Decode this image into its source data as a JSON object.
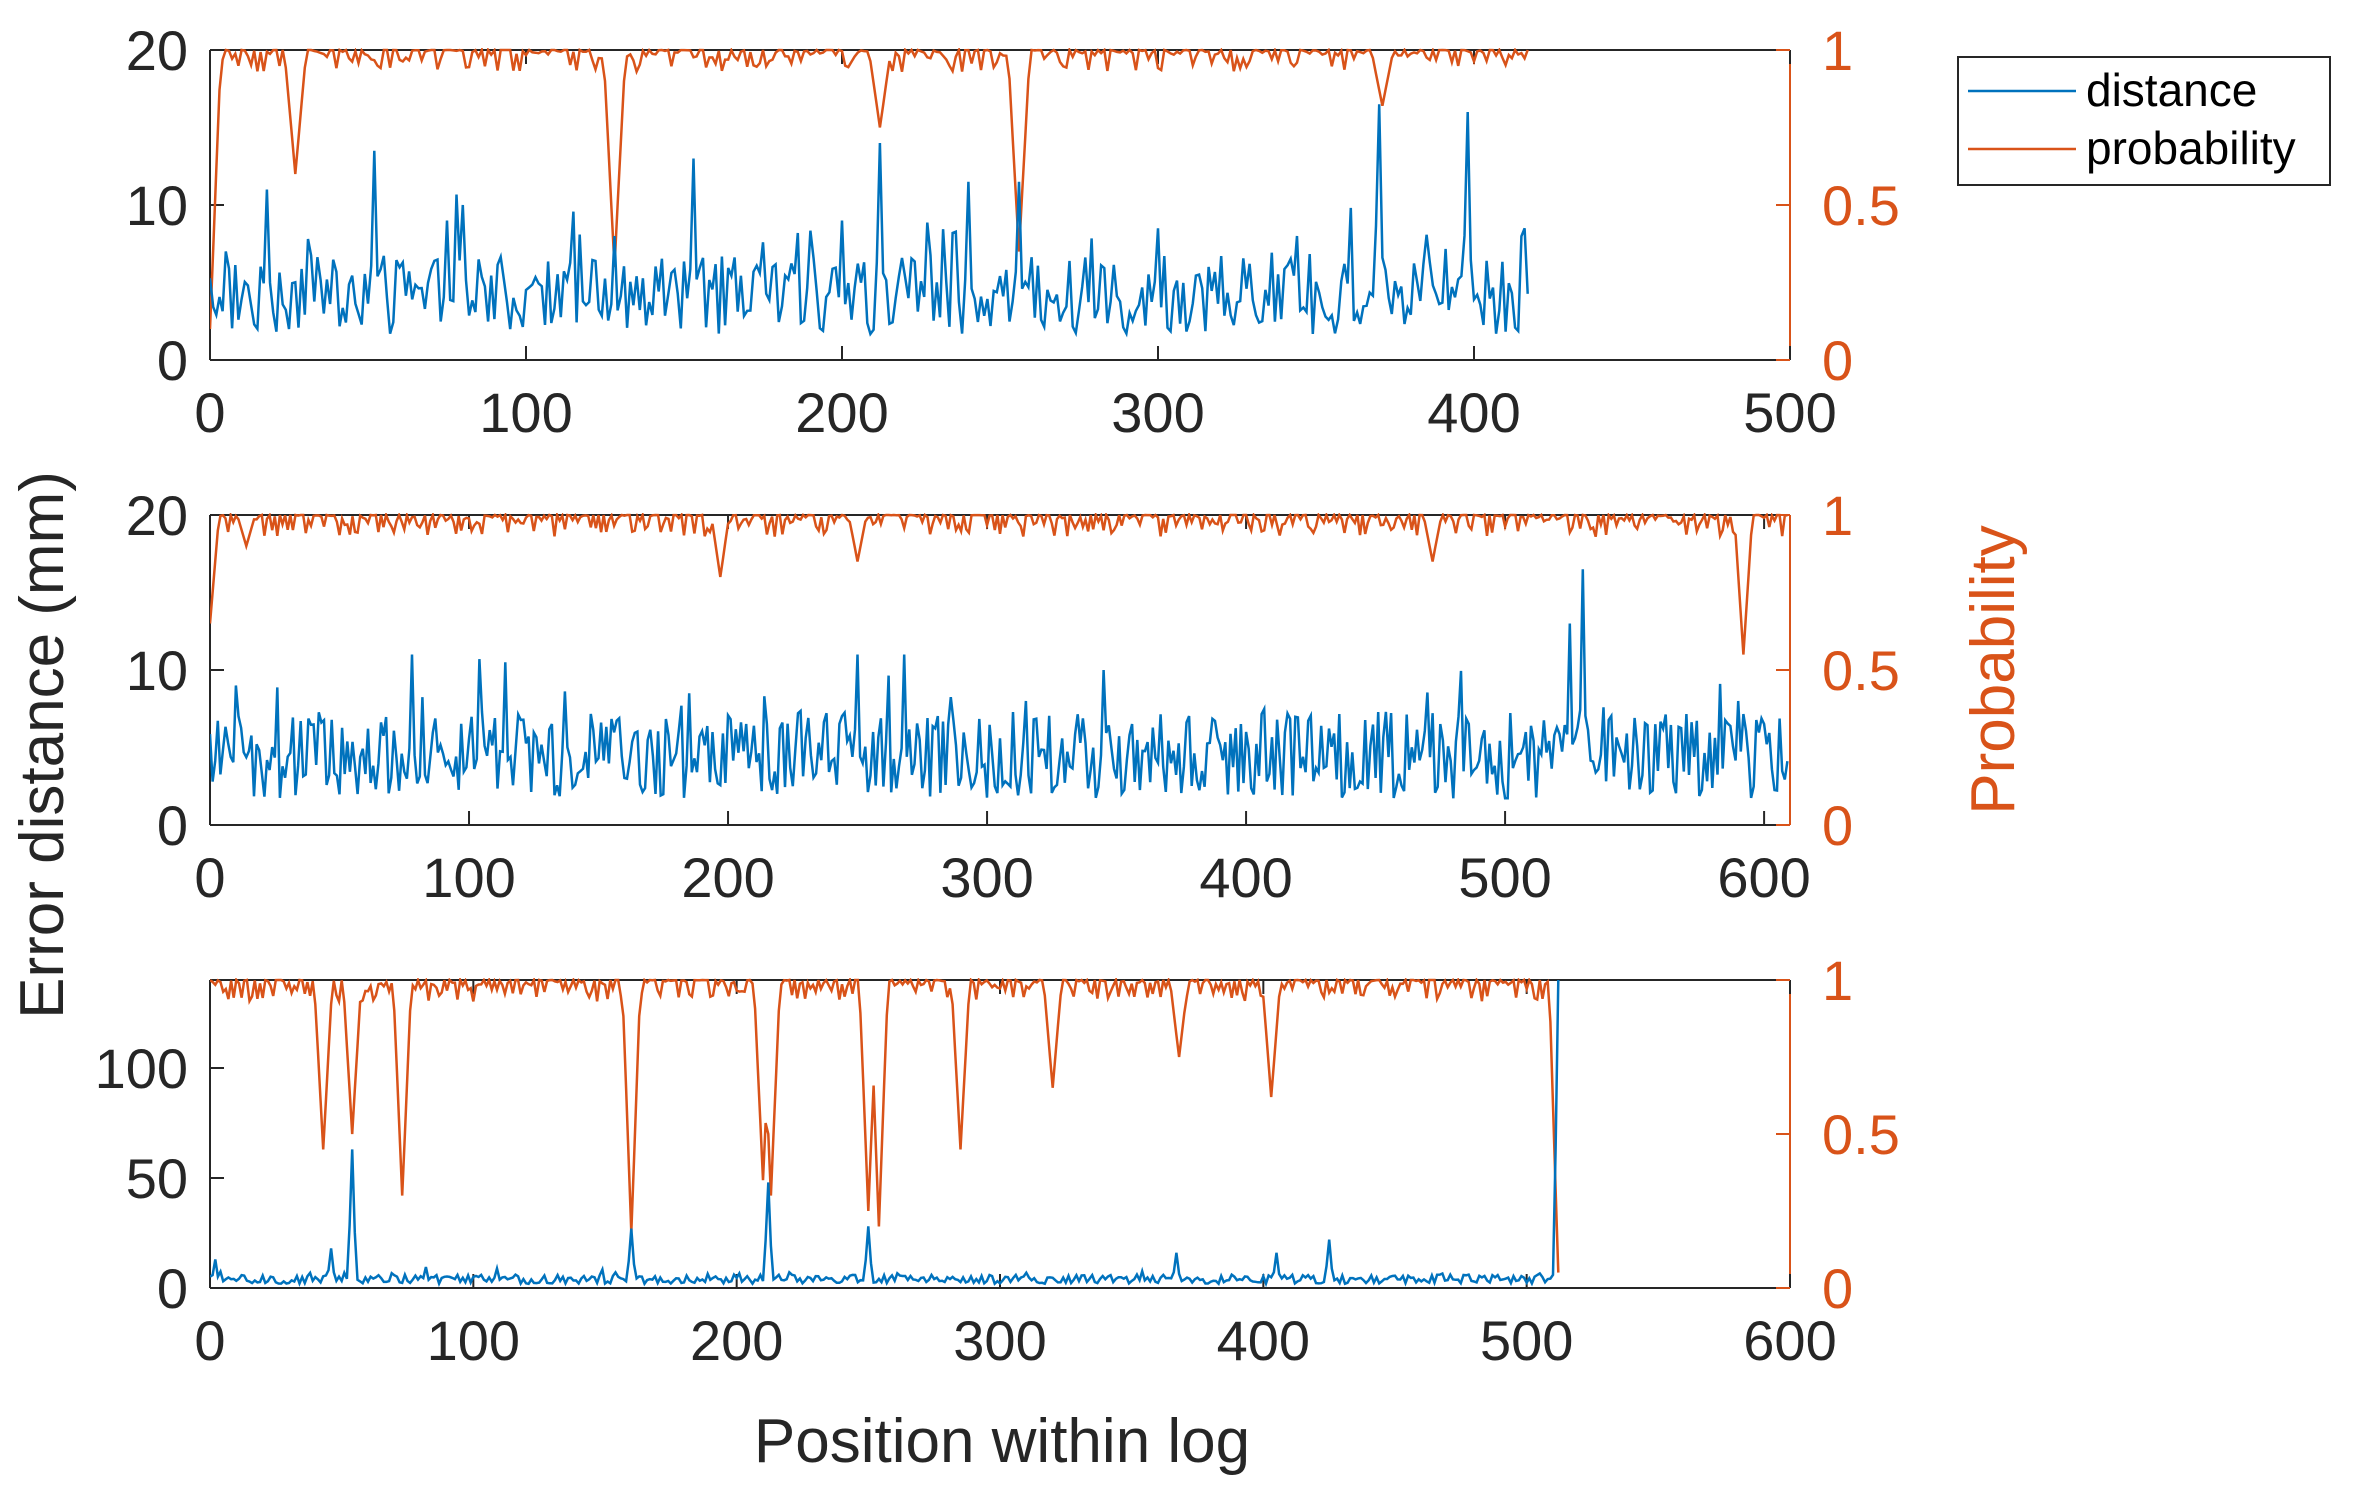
{
  "chart_data": {
    "type": "line",
    "xlabel": "Position within log",
    "ylabel_left": "Error distance (mm)",
    "ylabel_right": "Probability",
    "legend": [
      "distance",
      "probability"
    ],
    "legend_position": "top-right outside",
    "colors": {
      "distance": "#0072BD",
      "probability": "#D95319",
      "axis": "#262626"
    },
    "panels": [
      {
        "xlim": [
          0,
          500
        ],
        "xticks": [
          0,
          100,
          200,
          300,
          400,
          500
        ],
        "ylim": [
          0,
          20
        ],
        "yticks": [
          0,
          10,
          20
        ],
        "y2lim": [
          0,
          1
        ],
        "y2ticks": [
          0,
          0.5,
          1
        ],
        "n_points": 418,
        "distance_base": 4.2,
        "distance_noise": 1.8,
        "distance_spikes": [
          [
            5,
            7
          ],
          [
            18,
            11
          ],
          [
            52,
            13.5
          ],
          [
            75,
            9
          ],
          [
            80,
            10
          ],
          [
            128,
            8
          ],
          [
            153,
            13
          ],
          [
            178,
            6
          ],
          [
            200,
            9
          ],
          [
            212,
            14
          ],
          [
            240,
            11.5
          ],
          [
            256,
            11.5
          ],
          [
            300,
            8.5
          ],
          [
            344,
            8
          ],
          [
            370,
            16.5
          ],
          [
            398,
            16
          ],
          [
            416,
            8.5
          ]
        ],
        "probability_dips": [
          [
            0,
            0.1
          ],
          [
            27,
            0.6
          ],
          [
            128,
            0.3
          ],
          [
            212,
            0.75
          ],
          [
            256,
            0.35
          ],
          [
            371,
            0.82
          ]
        ]
      },
      {
        "xlim": [
          0,
          610
        ],
        "xticks": [
          0,
          100,
          200,
          300,
          400,
          500,
          600
        ],
        "ylim": [
          0,
          20
        ],
        "yticks": [
          0,
          10,
          20
        ],
        "y2lim": [
          0,
          1
        ],
        "y2ticks": [
          0,
          0.5,
          1
        ],
        "n_points": 610,
        "distance_base": 4.5,
        "distance_noise": 2.0,
        "distance_spikes": [
          [
            10,
            9
          ],
          [
            78,
            11
          ],
          [
            114,
            10.5
          ],
          [
            185,
            8.5
          ],
          [
            250,
            11
          ],
          [
            268,
            11
          ],
          [
            315,
            8
          ],
          [
            345,
            10
          ],
          [
            400,
            6
          ],
          [
            525,
            13
          ],
          [
            530,
            16.5
          ],
          [
            590,
            8
          ]
        ],
        "probability_dips": [
          [
            0,
            0.65
          ],
          [
            14,
            0.9
          ],
          [
            197,
            0.8
          ],
          [
            250,
            0.85
          ],
          [
            472,
            0.85
          ],
          [
            592,
            0.55
          ]
        ]
      },
      {
        "xlim": [
          0,
          600
        ],
        "xticks": [
          0,
          100,
          200,
          300,
          400,
          500,
          600
        ],
        "ylim": [
          0,
          140
        ],
        "yticks": [
          0,
          50,
          100
        ],
        "y2lim": [
          0,
          1
        ],
        "y2ticks": [
          0,
          0.5,
          1
        ],
        "n_points": 513,
        "distance_base": 4.0,
        "distance_noise": 1.5,
        "distance_spikes": [
          [
            2,
            13
          ],
          [
            46,
            18
          ],
          [
            54,
            63
          ],
          [
            160,
            27
          ],
          [
            212,
            48
          ],
          [
            250,
            28
          ],
          [
            367,
            16
          ],
          [
            405,
            16
          ],
          [
            425,
            22
          ],
          [
            512,
            140
          ]
        ],
        "probability_dips": [
          [
            43,
            0.45
          ],
          [
            54,
            0.5
          ],
          [
            73,
            0.3
          ],
          [
            160,
            0.18
          ],
          [
            210,
            0.35
          ],
          [
            213,
            0.3
          ],
          [
            250,
            0.25
          ],
          [
            254,
            0.2
          ],
          [
            285,
            0.45
          ],
          [
            320,
            0.65
          ],
          [
            368,
            0.75
          ],
          [
            403,
            0.62
          ],
          [
            512,
            0.05
          ]
        ]
      }
    ]
  }
}
